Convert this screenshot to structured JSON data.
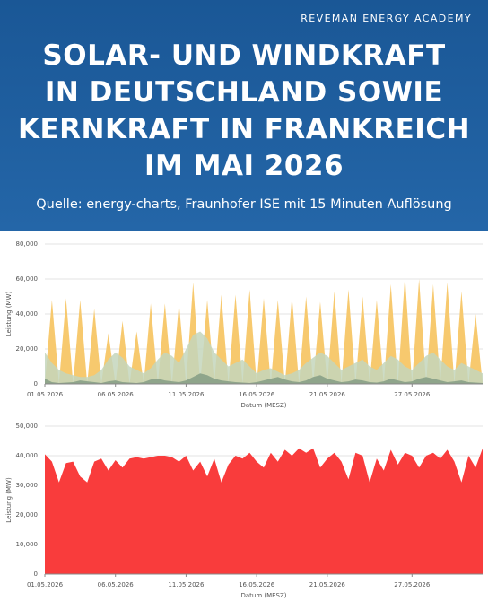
{
  "header": {
    "brand": "REVEMAN ENERGY ACADEMY",
    "title_lines": [
      "SOLAR- UND WINDKRAFT",
      "IN DEUTSCHLAND SOWIE",
      "KERNKRAFT IN FRANKREICH",
      "IM MAI 2026"
    ],
    "source": "Quelle: energy-charts, Fraunhofer ISE mit 15 Minuten Auflösung"
  },
  "chart_data": [
    {
      "type": "area",
      "xlabel": "Datum (MESZ)",
      "ylabel": "Leistung (MW)",
      "xlim": [
        0,
        31
      ],
      "xticks": [
        {
          "value": 0,
          "label": "01.05.2026"
        },
        {
          "value": 5,
          "label": "06.05.2026"
        },
        {
          "value": 10,
          "label": "11.05.2026"
        },
        {
          "value": 15,
          "label": "16.05.2026"
        },
        {
          "value": 20,
          "label": "21.05.2026"
        },
        {
          "value": 26,
          "label": "27.05.2026"
        }
      ],
      "ylim": [
        0,
        80000
      ],
      "yticks": [
        0,
        {
          "value": 20000,
          "label": "20,000"
        },
        {
          "value": 40000,
          "label": "40,000"
        },
        {
          "value": 60000,
          "label": "60,000"
        },
        {
          "value": 80000,
          "label": "80,000"
        }
      ],
      "grid": true,
      "x": [
        0,
        0.5,
        1,
        1.5,
        2,
        2.5,
        3,
        3.5,
        4,
        4.5,
        5,
        5.5,
        6,
        6.5,
        7,
        7.5,
        8,
        8.5,
        9,
        9.5,
        10,
        10.5,
        11,
        11.5,
        12,
        12.5,
        13,
        13.5,
        14,
        14.5,
        15,
        15.5,
        16,
        16.5,
        17,
        17.5,
        18,
        18.5,
        19,
        19.5,
        20,
        20.5,
        21,
        21.5,
        22,
        22.5,
        23,
        23.5,
        24,
        24.5,
        25,
        25.5,
        26,
        26.5,
        27,
        27.5,
        28,
        28.5,
        29,
        29.5,
        30,
        30.5,
        31
      ],
      "series": [
        {
          "color": "#f7c96e",
          "values": [
            0,
            48000,
            0,
            49000,
            0,
            48000,
            0,
            43000,
            0,
            29000,
            0,
            36000,
            0,
            30000,
            0,
            46000,
            0,
            46000,
            0,
            46000,
            0,
            58000,
            0,
            48000,
            0,
            51000,
            0,
            51000,
            0,
            54000,
            0,
            49000,
            0,
            48000,
            0,
            50000,
            0,
            50000,
            0,
            47000,
            0,
            53000,
            0,
            54000,
            0,
            50000,
            0,
            48000,
            0,
            57000,
            0,
            62000,
            0,
            60000,
            0,
            57000,
            0,
            58000,
            0,
            53000,
            0,
            40000,
            0
          ]
        },
        {
          "color": "#c4d6bc",
          "values": [
            18000,
            12000,
            8000,
            6000,
            5000,
            4000,
            4000,
            5000,
            8000,
            14000,
            18000,
            15000,
            10000,
            8000,
            6000,
            9000,
            14000,
            18000,
            16000,
            12000,
            20000,
            28000,
            30000,
            26000,
            18000,
            14000,
            10000,
            12000,
            14000,
            10000,
            6000,
            8000,
            9000,
            7000,
            5000,
            6000,
            8000,
            12000,
            15000,
            18000,
            16000,
            12000,
            8000,
            10000,
            12000,
            14000,
            10000,
            8000,
            12000,
            16000,
            14000,
            10000,
            8000,
            12000,
            16000,
            18000,
            14000,
            10000,
            8000,
            12000,
            10000,
            8000,
            6000
          ]
        },
        {
          "color": "#8fa58b",
          "values": [
            3000,
            1000,
            500,
            800,
            1000,
            2000,
            1500,
            1000,
            500,
            1500,
            2000,
            1000,
            800,
            500,
            1000,
            2500,
            3000,
            2000,
            1500,
            1000,
            2000,
            4000,
            6000,
            5000,
            3000,
            2000,
            1500,
            1000,
            800,
            500,
            1000,
            2000,
            3000,
            4000,
            2500,
            1500,
            1000,
            2000,
            4000,
            5000,
            3000,
            2000,
            1000,
            1500,
            2500,
            2000,
            1000,
            800,
            1500,
            3000,
            2000,
            1000,
            1500,
            3000,
            4000,
            3000,
            2000,
            1000,
            1500,
            2000,
            1000,
            800,
            500
          ]
        }
      ]
    },
    {
      "type": "area",
      "xlabel": "Datum (MESZ)",
      "ylabel": "Leistung (MW)",
      "xlim": [
        0,
        31
      ],
      "xticks": [
        {
          "value": 0,
          "label": "01.05.2026"
        },
        {
          "value": 5,
          "label": "06.05.2026"
        },
        {
          "value": 10,
          "label": "11.05.2026"
        },
        {
          "value": 15,
          "label": "16.05.2026"
        },
        {
          "value": 20,
          "label": "21.05.2026"
        },
        {
          "value": 26,
          "label": "27.05.2026"
        }
      ],
      "ylim": [
        0,
        50000
      ],
      "yticks": [
        0,
        {
          "value": 10000,
          "label": "10,000"
        },
        {
          "value": 20000,
          "label": "20,000"
        },
        {
          "value": 30000,
          "label": "30,000"
        },
        {
          "value": 40000,
          "label": "40,000"
        },
        {
          "value": 50000,
          "label": "50,000"
        }
      ],
      "grid": true,
      "x": [
        0,
        0.5,
        1,
        1.5,
        2,
        2.5,
        3,
        3.5,
        4,
        4.5,
        5,
        5.5,
        6,
        6.5,
        7,
        7.5,
        8,
        8.5,
        9,
        9.5,
        10,
        10.5,
        11,
        11.5,
        12,
        12.5,
        13,
        13.5,
        14,
        14.5,
        15,
        15.5,
        16,
        16.5,
        17,
        17.5,
        18,
        18.5,
        19,
        19.5,
        20,
        20.5,
        21,
        21.5,
        22,
        22.5,
        23,
        23.5,
        24,
        24.5,
        25,
        25.5,
        26,
        26.5,
        27,
        27.5,
        28,
        28.5,
        29,
        29.5,
        30,
        30.5,
        31
      ],
      "series": [
        {
          "color": "#f93c3c",
          "values": [
            40500,
            38000,
            31000,
            37500,
            38000,
            33000,
            31000,
            38000,
            39000,
            35000,
            38500,
            36000,
            39000,
            39500,
            39000,
            39500,
            40000,
            40000,
            39500,
            38000,
            40000,
            35000,
            38000,
            33000,
            39000,
            31000,
            37000,
            40000,
            39000,
            41000,
            38000,
            36000,
            41000,
            38000,
            42000,
            40000,
            42500,
            41000,
            42500,
            36000,
            39000,
            41000,
            38000,
            32000,
            41000,
            40000,
            31000,
            39000,
            35000,
            42000,
            37000,
            41000,
            40000,
            36000,
            40000,
            41000,
            39000,
            42000,
            38000,
            31000,
            40000,
            36000,
            42500
          ]
        }
      ]
    }
  ]
}
